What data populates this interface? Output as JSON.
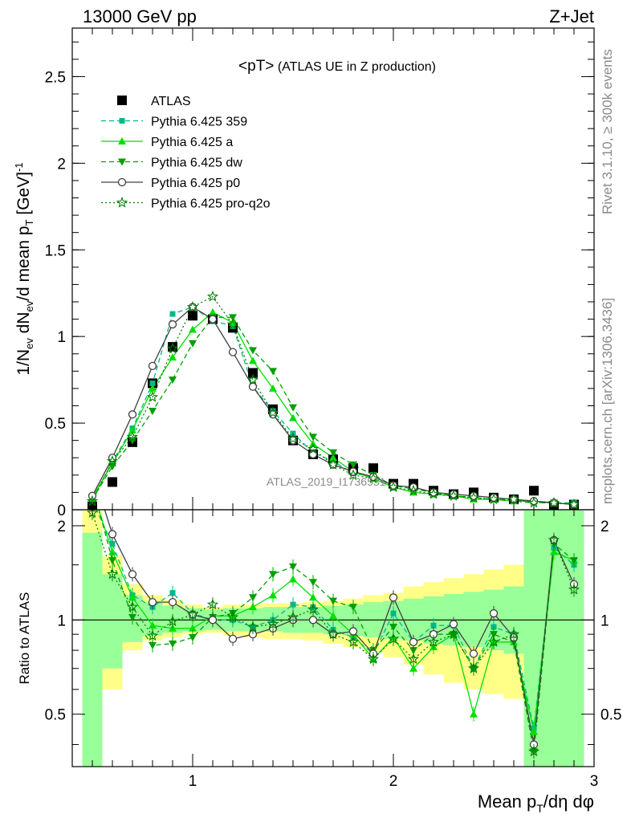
{
  "header": {
    "energy": "13000 GeV pp",
    "process": "Z+Jet"
  },
  "side_labels": {
    "rivet": "Rivet 3.1.10, ≥ 300k events",
    "mcplots": "mcplots.cern.ch [arXiv:1306.3436]"
  },
  "watermark": "ATLAS_2019_I1736531",
  "chart_data": [
    {
      "type": "line",
      "title": "<pT> (ATLAS UE in Z production)",
      "title_parts": {
        "main": "<pT>",
        "sub": " (ATLAS UE in Z production)"
      },
      "ylabel_parts": {
        "a": "1/N",
        "a_sub": "ev",
        "b": " dN",
        "b_sub": "ev",
        "c": "/d mean p",
        "c_sub": "T",
        "d": " [GeV]",
        "d_sup": "-1"
      },
      "xlim": [
        0.4,
        3.0
      ],
      "ylim": [
        0,
        2.78
      ],
      "y_ticks": [
        {
          "v": 0,
          "label": "0"
        },
        {
          "v": 0.5,
          "label": "0.5"
        },
        {
          "v": 1,
          "label": "1"
        },
        {
          "v": 1.5,
          "label": "1.5"
        },
        {
          "v": 2,
          "label": "2"
        },
        {
          "v": 2.5,
          "label": "2.5"
        }
      ],
      "x": [
        0.5,
        0.6,
        0.7,
        0.8,
        0.9,
        1.0,
        1.1,
        1.2,
        1.3,
        1.4,
        1.5,
        1.6,
        1.7,
        1.8,
        1.9,
        2.0,
        2.1,
        2.2,
        2.3,
        2.4,
        2.5,
        2.6,
        2.7,
        2.8,
        2.9
      ],
      "series": [
        {
          "name": "ATLAS",
          "style": "data",
          "color": "#000000",
          "marker": "square",
          "values": [
            0.02,
            0.16,
            0.39,
            0.73,
            0.94,
            1.12,
            1.1,
            1.05,
            0.79,
            0.58,
            0.4,
            0.32,
            0.29,
            0.24,
            0.24,
            0.15,
            0.15,
            0.11,
            0.09,
            0.1,
            0.07,
            0.06,
            0.11,
            0.02,
            0.03
          ]
        },
        {
          "name": "Pythia 6.425 359",
          "style": "dashed",
          "color": "#00b88a",
          "marker": "square-small",
          "values": [
            0.06,
            0.28,
            0.47,
            0.73,
            1.13,
            1.17,
            1.09,
            1.06,
            0.71,
            0.57,
            0.44,
            0.33,
            0.28,
            0.21,
            0.19,
            0.14,
            0.12,
            0.1,
            0.08,
            0.07,
            0.06,
            0.06,
            0.05,
            0.04,
            0.04
          ]
        },
        {
          "name": "Pythia 6.425 a",
          "style": "solid",
          "color": "#00e000",
          "marker": "triangle-up",
          "values": [
            0.07,
            0.27,
            0.46,
            0.7,
            0.88,
            1.04,
            1.14,
            1.08,
            0.86,
            0.7,
            0.53,
            0.38,
            0.3,
            0.22,
            0.18,
            0.13,
            0.1,
            0.09,
            0.08,
            0.06,
            0.06,
            0.05,
            0.05,
            0.04,
            0.03
          ]
        },
        {
          "name": "Pythia 6.425 dw",
          "style": "dashed",
          "color": "#00a000",
          "marker": "triangle-down",
          "values": [
            0.06,
            0.25,
            0.4,
            0.57,
            0.75,
            0.96,
            1.11,
            1.11,
            0.92,
            0.8,
            0.59,
            0.42,
            0.33,
            0.26,
            0.2,
            0.14,
            0.12,
            0.1,
            0.08,
            0.07,
            0.06,
            0.05,
            0.04,
            0.04,
            0.03
          ]
        },
        {
          "name": "Pythia 6.425 p0",
          "style": "solid",
          "color": "#404040",
          "marker": "circle-open",
          "values": [
            0.08,
            0.3,
            0.55,
            0.83,
            1.07,
            1.17,
            1.1,
            0.91,
            0.71,
            0.55,
            0.4,
            0.32,
            0.26,
            0.22,
            0.19,
            0.14,
            0.13,
            0.1,
            0.09,
            0.08,
            0.07,
            0.06,
            0.05,
            0.04,
            0.03
          ]
        },
        {
          "name": "Pythia 6.425 pro-q2o",
          "style": "dotted",
          "color": "#008000",
          "marker": "star-open",
          "values": [
            0.05,
            0.28,
            0.42,
            0.65,
            0.93,
            1.17,
            1.23,
            1.07,
            0.75,
            0.56,
            0.41,
            0.35,
            0.26,
            0.2,
            0.18,
            0.13,
            0.11,
            0.09,
            0.08,
            0.07,
            0.06,
            0.06,
            0.04,
            0.04,
            0.03
          ]
        }
      ]
    },
    {
      "type": "line",
      "ylabel": "Ratio to ATLAS",
      "xlabel_parts": {
        "a": "Mean p",
        "a_sub": "T",
        "b": "/dη dφ"
      },
      "xlim": [
        0.4,
        3.0
      ],
      "ylim": [
        0.34,
        2.25
      ],
      "y_scale": "log",
      "x_ticks": [
        {
          "v": 1,
          "label": "1"
        },
        {
          "v": 2,
          "label": "2"
        },
        {
          "v": 3,
          "label": "3"
        }
      ],
      "y_ticks": [
        {
          "v": 0.5,
          "label": "0.5"
        },
        {
          "v": 1,
          "label": "1"
        },
        {
          "v": 2,
          "label": "2"
        }
      ],
      "reference_line": 1,
      "bins": [
        [
          0.45,
          0.55
        ],
        [
          0.55,
          0.65
        ],
        [
          0.65,
          0.75
        ],
        [
          0.75,
          0.85
        ],
        [
          0.85,
          0.95
        ],
        [
          0.95,
          1.05
        ],
        [
          1.05,
          1.15
        ],
        [
          1.15,
          1.25
        ],
        [
          1.25,
          1.35
        ],
        [
          1.35,
          1.45
        ],
        [
          1.45,
          1.55
        ],
        [
          1.55,
          1.65
        ],
        [
          1.65,
          1.75
        ],
        [
          1.75,
          1.85
        ],
        [
          1.85,
          1.95
        ],
        [
          1.95,
          2.05
        ],
        [
          2.05,
          2.15
        ],
        [
          2.15,
          2.25
        ],
        [
          2.25,
          2.35
        ],
        [
          2.35,
          2.45
        ],
        [
          2.45,
          2.55
        ],
        [
          2.55,
          2.65
        ],
        [
          2.65,
          2.75
        ],
        [
          2.75,
          2.85
        ],
        [
          2.85,
          2.95
        ]
      ],
      "band_outer": {
        "color": "#ffff88",
        "lo": [
          0.3,
          0.6,
          0.8,
          0.86,
          0.88,
          0.9,
          0.91,
          0.89,
          0.88,
          0.87,
          0.87,
          0.86,
          0.84,
          0.82,
          0.79,
          0.76,
          0.72,
          0.67,
          0.63,
          0.6,
          0.58,
          0.56,
          0.3,
          0.3,
          0.3
        ],
        "hi": [
          2.5,
          1.6,
          1.3,
          1.2,
          1.16,
          1.12,
          1.1,
          1.12,
          1.12,
          1.13,
          1.13,
          1.14,
          1.15,
          1.17,
          1.2,
          1.22,
          1.28,
          1.32,
          1.36,
          1.4,
          1.45,
          1.5,
          2.5,
          2.5,
          2.5
        ]
      },
      "band_inner": {
        "color": "#99ff99",
        "lo": [
          0.34,
          0.7,
          0.85,
          0.89,
          0.91,
          0.92,
          0.93,
          0.92,
          0.92,
          0.92,
          0.91,
          0.91,
          0.9,
          0.89,
          0.88,
          0.87,
          0.86,
          0.84,
          0.83,
          0.82,
          0.8,
          0.78,
          0.34,
          0.34,
          0.34
        ],
        "hi": [
          1.9,
          1.4,
          1.2,
          1.14,
          1.11,
          1.09,
          1.08,
          1.09,
          1.09,
          1.1,
          1.1,
          1.1,
          1.11,
          1.12,
          1.14,
          1.15,
          1.17,
          1.19,
          1.21,
          1.23,
          1.25,
          1.28,
          2.3,
          2.3,
          2.3
        ]
      },
      "x": [
        0.5,
        0.6,
        0.7,
        0.8,
        0.9,
        1.0,
        1.1,
        1.2,
        1.3,
        1.4,
        1.5,
        1.6,
        1.7,
        1.8,
        1.9,
        2.0,
        2.1,
        2.2,
        2.3,
        2.4,
        2.5,
        2.6,
        2.7,
        2.8,
        2.9
      ],
      "series": [
        {
          "name": "Pythia 6.425 359",
          "values": [
            2.4,
            1.75,
            1.2,
            1.1,
            1.22,
            1.05,
            1.0,
            1.0,
            0.95,
            1.0,
            1.12,
            1.1,
            0.93,
            0.88,
            0.78,
            1.05,
            0.85,
            0.96,
            0.96,
            0.7,
            0.95,
            0.9,
            0.45,
            1.7,
            1.5
          ]
        },
        {
          "name": "Pythia 6.425 a",
          "values": [
            2.6,
            1.65,
            1.18,
            0.96,
            0.94,
            0.94,
            1.03,
            1.03,
            1.1,
            1.2,
            1.35,
            1.18,
            1.03,
            0.9,
            0.75,
            0.88,
            0.7,
            0.82,
            0.9,
            0.5,
            0.85,
            0.85,
            0.44,
            1.65,
            1.55
          ]
        },
        {
          "name": "Pythia 6.425 dw",
          "values": [
            2.7,
            1.55,
            1.02,
            0.83,
            0.84,
            0.88,
            1.02,
            1.05,
            1.18,
            1.4,
            1.48,
            1.32,
            1.15,
            1.1,
            0.8,
            0.95,
            0.8,
            0.9,
            0.9,
            0.7,
            0.9,
            0.85,
            0.38,
            1.75,
            1.55
          ]
        },
        {
          "name": "Pythia 6.425 p0",
          "values": [
            3.0,
            1.88,
            1.4,
            1.14,
            1.14,
            1.04,
            1.0,
            0.87,
            0.9,
            0.94,
            1.0,
            1.0,
            0.9,
            0.92,
            0.78,
            1.18,
            0.85,
            0.9,
            0.97,
            0.78,
            1.05,
            0.88,
            0.4,
            1.8,
            1.3
          ]
        },
        {
          "name": "Pythia 6.425 pro-q2o",
          "values": [
            2.2,
            1.4,
            1.1,
            0.89,
            0.99,
            1.04,
            1.12,
            1.02,
            0.95,
            0.97,
            1.02,
            1.08,
            0.9,
            0.85,
            0.75,
            0.87,
            0.75,
            0.85,
            0.9,
            0.7,
            0.85,
            0.9,
            0.38,
            1.8,
            1.25
          ]
        }
      ]
    }
  ]
}
